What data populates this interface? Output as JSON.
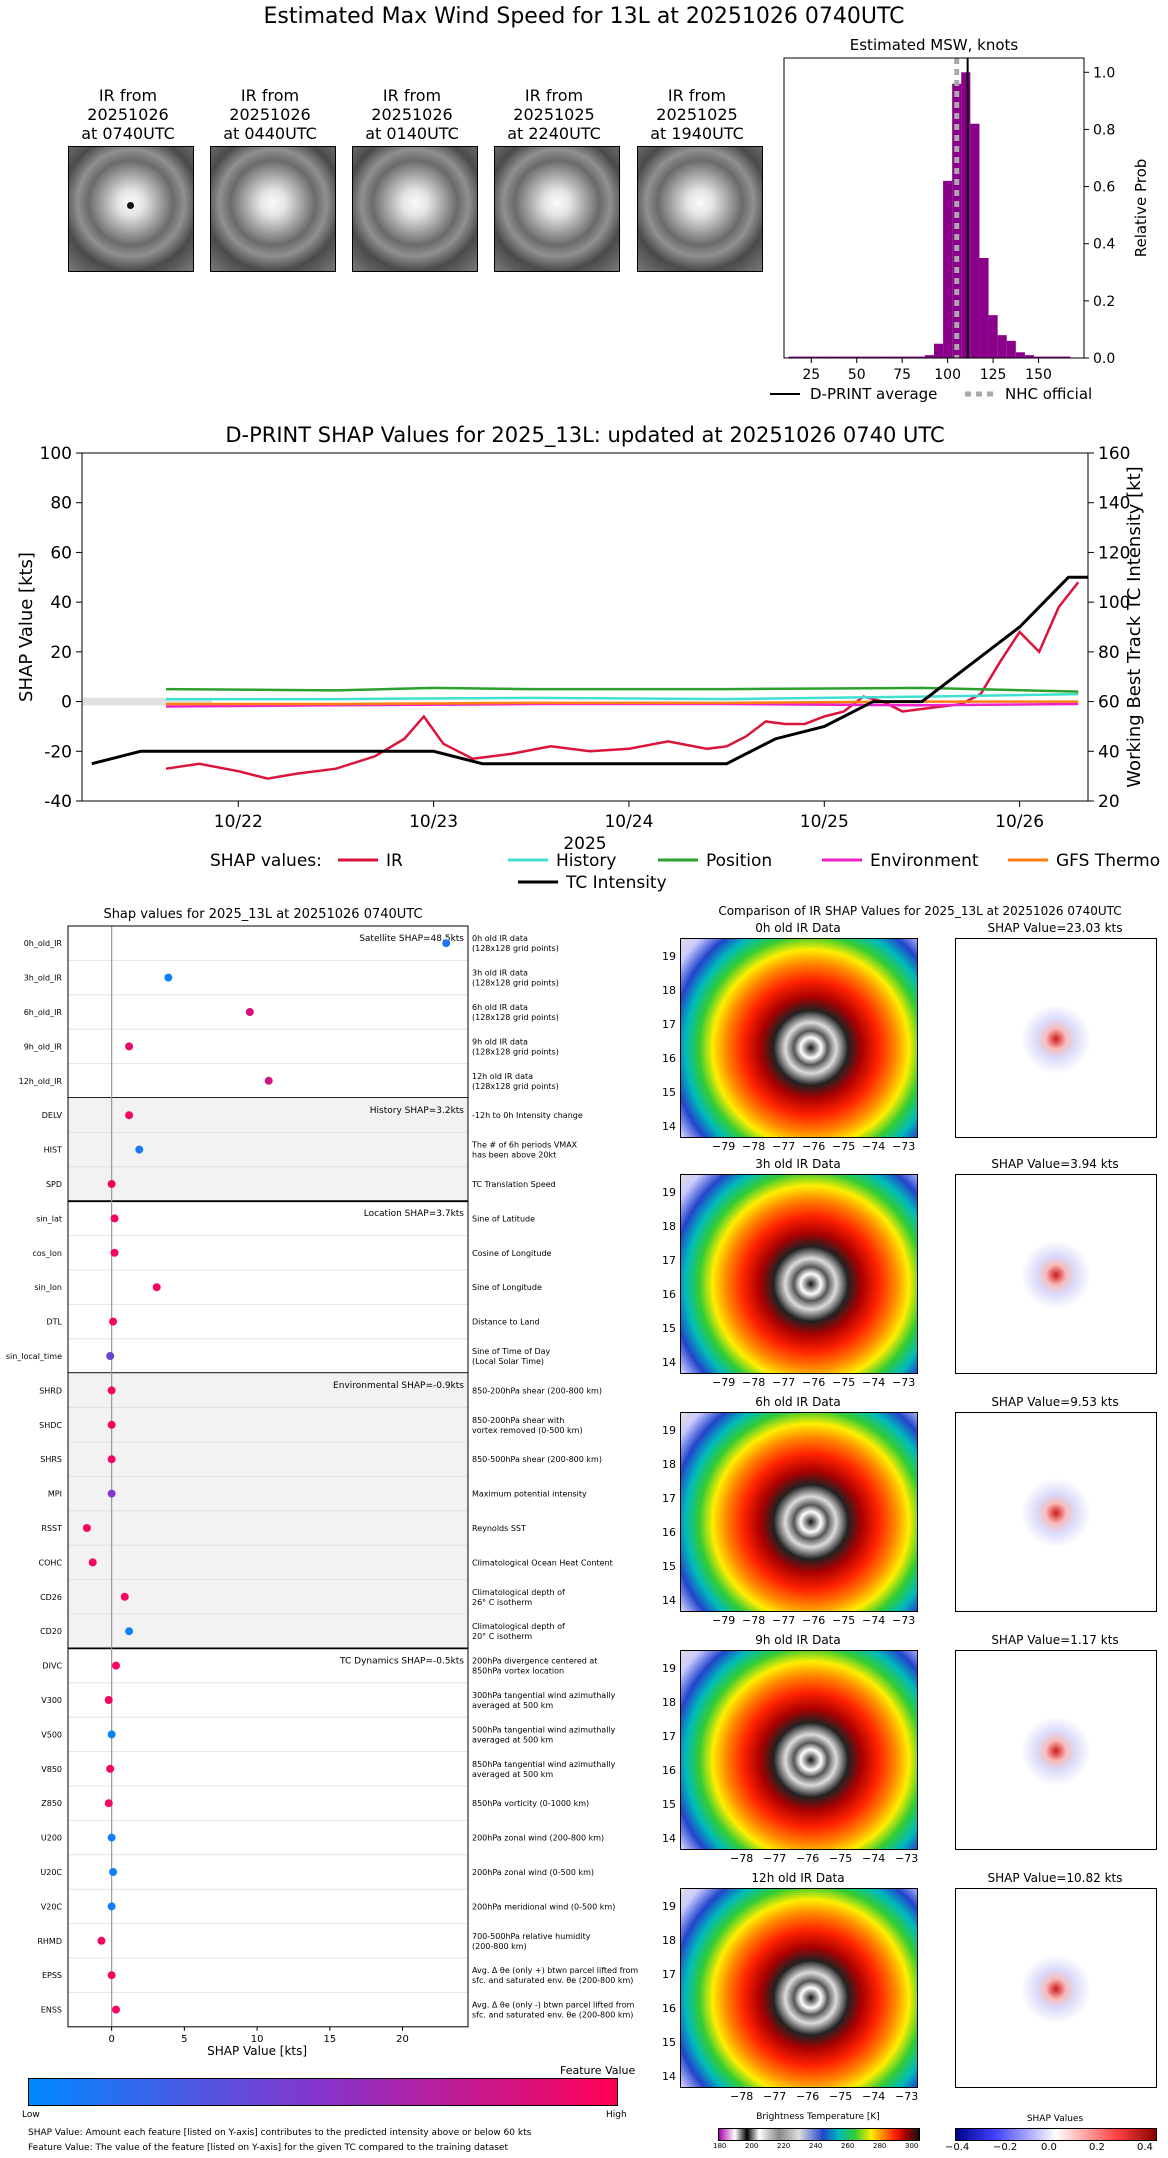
{
  "main_title": "Estimated Max Wind Speed for 13L at 20251026 0740UTC",
  "ir_thumbnails": [
    {
      "line1": "IR from",
      "line2": "20251026",
      "line3": "at 0740UTC"
    },
    {
      "line1": "IR from",
      "line2": "20251026",
      "line3": "at 0440UTC"
    },
    {
      "line1": "IR from",
      "line2": "20251026",
      "line3": "at 0140UTC"
    },
    {
      "line1": "IR from",
      "line2": "20251025",
      "line3": "at 2240UTC"
    },
    {
      "line1": "IR from",
      "line2": "20251025",
      "line3": "at 1940UTC"
    }
  ],
  "colors": {
    "purple": "#8b008b",
    "ir": "#dc143c",
    "history": "#40e0d0",
    "position": "#2ca02c",
    "environment": "#ee22cc",
    "gfs": "#ff7f0e",
    "tc": "#000000",
    "nhc": "#a9a9a9"
  },
  "chart_data": [
    {
      "type": "bar",
      "title": "Estimated MSW, knots",
      "xlabel": "",
      "ylabel": "Relative Prob",
      "xlim": [
        10,
        175
      ],
      "ylim": [
        0,
        1.05
      ],
      "xticks": [
        25,
        50,
        75,
        100,
        125,
        150
      ],
      "yticks": [
        0.0,
        0.2,
        0.4,
        0.6,
        0.8,
        1.0
      ],
      "bin_width": 5,
      "bins": [
        15,
        20,
        25,
        30,
        35,
        40,
        45,
        50,
        55,
        60,
        65,
        70,
        75,
        80,
        85,
        90,
        95,
        100,
        105,
        110,
        115,
        120,
        125,
        130,
        135,
        140,
        145,
        150,
        155,
        160,
        165
      ],
      "values": [
        0.005,
        0.005,
        0.005,
        0.005,
        0.005,
        0.005,
        0.005,
        0.005,
        0.005,
        0.005,
        0.005,
        0.005,
        0.005,
        0.005,
        0.005,
        0.01,
        0.05,
        0.62,
        0.96,
        1.0,
        0.82,
        0.35,
        0.15,
        0.08,
        0.06,
        0.02,
        0.01,
        0.005,
        0.005,
        0.005,
        0.005
      ],
      "dprint_average": 111,
      "nhc_official": 105,
      "legend": [
        "D-PRINT average",
        "NHC official"
      ]
    },
    {
      "type": "line",
      "title": "D-PRINT SHAP Values for 2025_13L: updated at 20251026 0740 UTC",
      "xlabel": "2025",
      "ylabel": "SHAP Value [kts]",
      "y2label": "Working Best Track TC Intensity [kt]",
      "ylim": [
        -40,
        100
      ],
      "y2lim": [
        20,
        160
      ],
      "xlim": [
        21.2,
        26.35
      ],
      "yticks": [
        -40,
        -20,
        0,
        20,
        40,
        60,
        80,
        100
      ],
      "y2ticks": [
        20,
        40,
        60,
        80,
        100,
        120,
        140,
        160
      ],
      "xticks": [
        {
          "v": 22,
          "label": "10/22"
        },
        {
          "v": 23,
          "label": "10/23"
        },
        {
          "v": 24,
          "label": "10/24"
        },
        {
          "v": 25,
          "label": "10/25"
        },
        {
          "v": 26,
          "label": "10/26"
        }
      ],
      "legend_prefix": "SHAP values:",
      "series": [
        {
          "name": "IR",
          "x": [
            21.63,
            21.8,
            22.0,
            22.15,
            22.3,
            22.5,
            22.7,
            22.85,
            22.95,
            23.05,
            23.2,
            23.4,
            23.6,
            23.8,
            24.0,
            24.2,
            24.4,
            24.5,
            24.6,
            24.7,
            24.8,
            24.9,
            25.0,
            25.1,
            25.2,
            25.3,
            25.4,
            25.5,
            25.6,
            25.7,
            25.8,
            25.9,
            26.0,
            26.1,
            26.2,
            26.3
          ],
          "y": [
            -27,
            -25,
            -28,
            -31,
            -29,
            -27,
            -22,
            -15,
            -6,
            -17,
            -23,
            -21,
            -18,
            -20,
            -19,
            -16,
            -19,
            -18,
            -14,
            -8,
            -9,
            -9,
            -6,
            -4,
            2,
            0,
            -4,
            -3,
            -2,
            -1,
            3,
            16,
            28,
            20,
            38,
            48
          ]
        },
        {
          "name": "History",
          "x": [
            21.63,
            22.5,
            23.5,
            24.5,
            25.5,
            26.3
          ],
          "y": [
            1,
            1,
            1.5,
            1,
            2,
            3
          ]
        },
        {
          "name": "Position",
          "x": [
            21.63,
            22.5,
            23.0,
            23.5,
            24.5,
            25.5,
            26.3
          ],
          "y": [
            5,
            4.5,
            5.5,
            5,
            5,
            5.5,
            4
          ]
        },
        {
          "name": "Environment",
          "x": [
            21.63,
            22.5,
            23.5,
            24.5,
            25.5,
            26.3
          ],
          "y": [
            -2,
            -1.5,
            -1,
            -1,
            -1.5,
            -1
          ]
        },
        {
          "name": "GFS Thermo",
          "x": [
            21.63,
            22.5,
            23.5,
            24.5,
            25.5,
            26.3
          ],
          "y": [
            -1,
            -1,
            -0.5,
            -0.5,
            0,
            0
          ]
        }
      ],
      "tc_intensity": {
        "name": "TC Intensity",
        "x": [
          21.25,
          21.5,
          22.0,
          22.5,
          23.0,
          23.25,
          24.0,
          24.5,
          24.75,
          25.0,
          25.25,
          25.5,
          25.75,
          26.0,
          26.25,
          26.35
        ],
        "y": [
          35,
          40,
          40,
          40,
          40,
          35,
          35,
          35,
          45,
          50,
          60,
          60,
          75,
          90,
          110,
          110
        ]
      }
    },
    {
      "type": "scatter",
      "title": "Shap values for 2025_13L at 20251026 0740UTC",
      "xlabel": "SHAP Value [kts]",
      "xlim": [
        -3,
        24.5
      ],
      "xticks": [
        0,
        5,
        10,
        15,
        20
      ],
      "groups": [
        {
          "label": "Satellite SHAP=48.5kts",
          "rows": [
            {
              "name": "0h_old_IR",
              "desc": "0h old IR data\n(128x128 grid points)",
              "x": 23.0,
              "fv": 0.1
            },
            {
              "name": "3h_old_IR",
              "desc": "3h old IR data\n(128x128 grid points)",
              "x": 3.9,
              "fv": 0.05
            },
            {
              "name": "6h_old_IR",
              "desc": "6h old IR data\n(128x128 grid points)",
              "x": 9.5,
              "fv": 0.85
            },
            {
              "name": "9h_old_IR",
              "desc": "9h old IR data\n(128x128 grid points)",
              "x": 1.2,
              "fv": 0.9
            },
            {
              "name": "12h_old_IR",
              "desc": "12h old IR data\n(128x128 grid points)",
              "x": 10.8,
              "fv": 0.8
            }
          ]
        },
        {
          "label": "History SHAP=3.2kts",
          "rows": [
            {
              "name": "DELV",
              "desc": "-12h to 0h Intensity change",
              "x": 1.2,
              "fv": 0.95
            },
            {
              "name": "HIST",
              "desc": "The # of 6h periods VMAX\nhas been above 20kt",
              "x": 1.9,
              "fv": 0.1
            },
            {
              "name": "SPD",
              "desc": "TC Translation Speed",
              "x": 0.0,
              "fv": 0.95
            }
          ]
        },
        {
          "label": "Location SHAP=3.7kts",
          "rows": [
            {
              "name": "sin_lat",
              "desc": "Sine of Latitude",
              "x": 0.2,
              "fv": 0.95
            },
            {
              "name": "cos_lon",
              "desc": "Cosine of Longitude",
              "x": 0.2,
              "fv": 0.95
            },
            {
              "name": "sin_lon",
              "desc": "Sine of Longitude",
              "x": 3.1,
              "fv": 0.95
            },
            {
              "name": "DTL",
              "desc": "Distance to Land",
              "x": 0.1,
              "fv": 0.95
            },
            {
              "name": "sin_local_time",
              "desc": "Sine of Time of Day\n(Local Solar Time)",
              "x": -0.1,
              "fv": 0.4
            }
          ]
        },
        {
          "label": "Environmental SHAP=-0.9kts",
          "rows": [
            {
              "name": "SHRD",
              "desc": "850-200hPa shear (200-800 km)",
              "x": 0.0,
              "fv": 0.95
            },
            {
              "name": "SHDC",
              "desc": "850-200hPa shear with\nvortex removed (0-500 km)",
              "x": 0.0,
              "fv": 0.95
            },
            {
              "name": "SHRS",
              "desc": "850-500hPa shear (200-800 km)",
              "x": 0.0,
              "fv": 0.95
            },
            {
              "name": "MPI",
              "desc": "Maximum potential intensity",
              "x": 0.0,
              "fv": 0.5
            },
            {
              "name": "RSST",
              "desc": "Reynolds SST",
              "x": -1.7,
              "fv": 0.95
            },
            {
              "name": "COHC",
              "desc": "Climatological Ocean Heat Content",
              "x": -1.3,
              "fv": 0.95
            },
            {
              "name": "CD26",
              "desc": "Climatological depth of\n26° C isotherm",
              "x": 0.9,
              "fv": 0.95
            },
            {
              "name": "CD20",
              "desc": "Climatological depth of\n20° C isotherm",
              "x": 1.2,
              "fv": 0.05
            }
          ]
        },
        {
          "label": "TC Dynamics SHAP=-0.5kts",
          "rows": [
            {
              "name": "DIVC",
              "desc": "200hPa divergence centered at\n850hPa vortex location",
              "x": 0.3,
              "fv": 0.95
            },
            {
              "name": "V300",
              "desc": "300hPa tangential wind azimuthally\naveraged at 500 km",
              "x": -0.2,
              "fv": 0.95
            },
            {
              "name": "V500",
              "desc": "500hPa tangential wind azimuthally\naveraged at 500 km",
              "x": 0.0,
              "fv": 0.05
            },
            {
              "name": "V850",
              "desc": "850hPa tangential wind azimuthally\naveraged at 500 km",
              "x": -0.1,
              "fv": 0.95
            },
            {
              "name": "Z850",
              "desc": "850hPa vorticity (0-1000 km)",
              "x": -0.2,
              "fv": 0.95
            },
            {
              "name": "U200",
              "desc": "200hPa zonal wind (200-800 km)",
              "x": 0.0,
              "fv": 0.05
            },
            {
              "name": "U20C",
              "desc": "200hPa zonal wind (0-500 km)",
              "x": 0.1,
              "fv": 0.05
            },
            {
              "name": "V20C",
              "desc": "200hPa meridional wind (0-500 km)",
              "x": 0.0,
              "fv": 0.05
            },
            {
              "name": "RHMD",
              "desc": "700-500hPa relative humidity\n(200-800 km)",
              "x": -0.7,
              "fv": 0.95
            },
            {
              "name": "EPSS",
              "desc": "Avg. Δ θe (only +) btwn parcel lifted from\nsfc. and saturated env. θe (200-800 km)",
              "x": 0.0,
              "fv": 0.95
            },
            {
              "name": "ENSS",
              "desc": "Avg. Δ θe (only -) btwn parcel lifted from\nsfc. and saturated env. θe (200-800 km)",
              "x": 0.3,
              "fv": 0.95
            }
          ]
        }
      ]
    }
  ],
  "feature_colorbar": {
    "title": "Feature Value",
    "low": "Low",
    "high": "High"
  },
  "footnotes": {
    "line1": "SHAP Value: Amount each feature [listed on Y-axis] contributes to the predicted intensity above or below 60 kts",
    "line2": "Feature Value: The value of the feature [listed on Y-axis] for the given TC compared to the training dataset"
  },
  "comparison": {
    "title": "Comparison of IR SHAP Values for 2025_13L at 20251026 0740UTC",
    "panels": [
      {
        "ir_title": "0h old IR Data",
        "shap_title": "SHAP Value=23.03 kts",
        "yticks": [
          "19",
          "18",
          "17",
          "16",
          "15",
          "14"
        ],
        "xticks": [
          "−79",
          "−78",
          "−77",
          "−76",
          "−75",
          "−74",
          "−73"
        ]
      },
      {
        "ir_title": "3h old IR Data",
        "shap_title": "SHAP Value=3.94 kts",
        "yticks": [
          "19",
          "18",
          "17",
          "16",
          "15",
          "14"
        ],
        "xticks": [
          "−79",
          "−78",
          "−77",
          "−76",
          "−75",
          "−74",
          "−73"
        ]
      },
      {
        "ir_title": "6h old IR Data",
        "shap_title": "SHAP Value=9.53 kts",
        "yticks": [
          "19",
          "18",
          "17",
          "16",
          "15",
          "14"
        ],
        "xticks": [
          "−79",
          "−78",
          "−77",
          "−76",
          "−75",
          "−74",
          "−73"
        ]
      },
      {
        "ir_title": "9h old IR Data",
        "shap_title": "SHAP Value=1.17 kts",
        "yticks": [
          "19",
          "18",
          "17",
          "16",
          "15",
          "14"
        ],
        "xticks": [
          "−78",
          "−77",
          "−76",
          "−75",
          "−74",
          "−73"
        ]
      },
      {
        "ir_title": "12h old IR Data",
        "shap_title": "SHAP Value=10.82 kts",
        "yticks": [
          "19",
          "18",
          "17",
          "16",
          "15",
          "14"
        ],
        "xticks": [
          "−78",
          "−77",
          "−76",
          "−75",
          "−74",
          "−73"
        ]
      }
    ],
    "bt_colorbar": {
      "label": "Brightness Temperature [K]",
      "ticks": [
        "180",
        "200",
        "220",
        "240",
        "260",
        "280",
        "300"
      ]
    },
    "shap_colorbar": {
      "label": "SHAP Values",
      "ticks": [
        "−0.4",
        "−0.2",
        "0.0",
        "0.2",
        "0.4"
      ]
    }
  }
}
